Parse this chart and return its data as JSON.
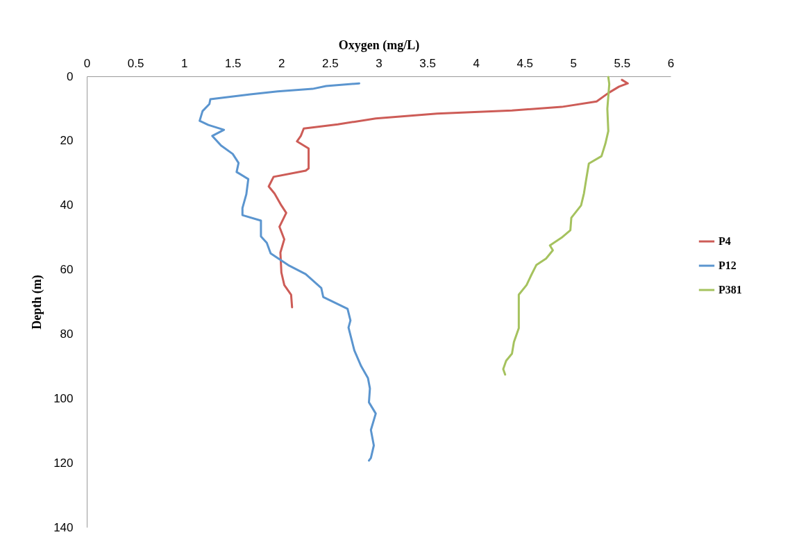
{
  "chart_data": {
    "type": "line",
    "xlabel": "Oxygen (mg/L)",
    "ylabel": "Depth (m)",
    "xlim": [
      0,
      6
    ],
    "xticks": [
      0,
      0.5,
      1,
      1.5,
      2,
      2.5,
      3,
      3.5,
      4,
      4.5,
      5,
      5.5,
      6
    ],
    "ylim": [
      140,
      0
    ],
    "yticks": [
      0,
      20,
      40,
      60,
      80,
      100,
      120,
      140
    ],
    "grid": false,
    "legend": "right",
    "marker": "none",
    "line_style": "solid",
    "series": [
      {
        "name": "P4",
        "color": "#cd5c57",
        "x": [
          5.5,
          5.56,
          5.47,
          5.36,
          5.24,
          4.88,
          4.37,
          3.6,
          2.97,
          2.58,
          2.23,
          2.2,
          2.16,
          2.28,
          2.28,
          2.28,
          2.25,
          1.92,
          1.87,
          1.93,
          2.0,
          2.05,
          1.98,
          2.03,
          1.99,
          2.0,
          2.03,
          2.1,
          2.11
        ],
        "values": [
          1.1,
          2.2,
          3.2,
          5.2,
          7.8,
          9.5,
          10.6,
          11.6,
          13.1,
          14.9,
          16.2,
          18.5,
          20.2,
          22.4,
          24.8,
          28.6,
          29.3,
          31.2,
          34.2,
          36.4,
          40.1,
          42.4,
          46.7,
          50.6,
          54.7,
          60.9,
          64.8,
          67.8,
          71.7
        ]
      },
      {
        "name": "P12",
        "color": "#5b95cf",
        "x": [
          2.8,
          2.46,
          2.32,
          1.96,
          1.68,
          1.27,
          1.26,
          1.19,
          1.16,
          1.25,
          1.41,
          1.29,
          1.38,
          1.5,
          1.56,
          1.54,
          1.66,
          1.64,
          1.6,
          1.6,
          1.79,
          1.79,
          1.85,
          1.89,
          2.07,
          2.25,
          2.41,
          2.43,
          2.68,
          2.71,
          2.69,
          2.75,
          2.82,
          2.89,
          2.91,
          2.9,
          2.97,
          2.92,
          2.95,
          2.92,
          2.9
        ],
        "values": [
          2.2,
          3.0,
          3.9,
          4.7,
          5.6,
          7.1,
          8.6,
          10.8,
          13.8,
          15.1,
          16.6,
          18.5,
          21.5,
          24.1,
          26.9,
          29.7,
          31.9,
          36.6,
          40.9,
          43.1,
          44.8,
          49.7,
          51.7,
          55.0,
          58.6,
          61.4,
          65.7,
          68.5,
          72.2,
          75.8,
          78.0,
          85.1,
          90.0,
          93.7,
          96.9,
          101.2,
          104.7,
          109.8,
          114.6,
          118.5,
          119.3
        ]
      },
      {
        "name": "P381",
        "color": "#a5c25e",
        "x": [
          5.36,
          5.37,
          5.35,
          5.36,
          5.33,
          5.29,
          5.16,
          5.13,
          5.11,
          5.08,
          4.98,
          4.97,
          4.88,
          4.76,
          4.79,
          4.72,
          4.62,
          4.57,
          4.52,
          4.44,
          4.44,
          4.44,
          4.39,
          4.37,
          4.31,
          4.28,
          4.3
        ],
        "values": [
          0.2,
          2.4,
          10.1,
          17.0,
          20.9,
          24.8,
          27.1,
          32.5,
          36.3,
          40.1,
          43.9,
          47.8,
          50.1,
          52.5,
          54.0,
          56.6,
          58.6,
          61.6,
          64.8,
          67.8,
          71.7,
          78.2,
          82.5,
          86.1,
          88.3,
          90.9,
          92.6
        ]
      }
    ]
  }
}
